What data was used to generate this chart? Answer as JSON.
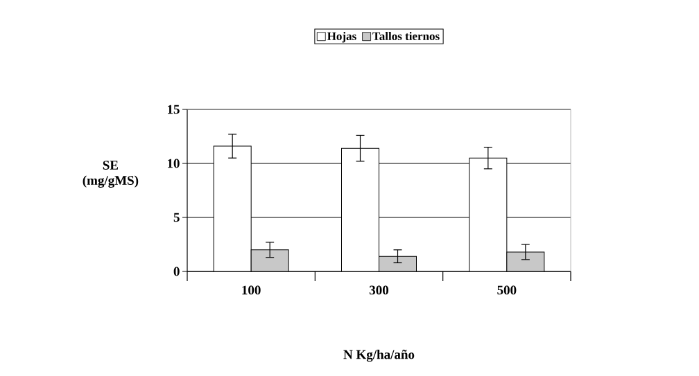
{
  "chart_data": {
    "type": "bar",
    "xlabel": "N Kg/ha/año",
    "ylabel": "SE (mg/gMS)",
    "categories": [
      "100",
      "300",
      "500"
    ],
    "series": [
      {
        "name": "Hojas",
        "color": "#ffffff",
        "values": [
          11.6,
          11.4,
          10.5
        ],
        "errors": [
          1.1,
          1.2,
          1.0
        ]
      },
      {
        "name": "Tallos tiernos",
        "color": "#c8c8c8",
        "values": [
          2.0,
          1.4,
          1.8
        ],
        "errors": [
          0.7,
          0.6,
          0.7
        ]
      }
    ],
    "ylim": [
      0,
      15
    ],
    "yticks": [
      0,
      5,
      10,
      15
    ],
    "grid": "y",
    "legend": "top"
  }
}
